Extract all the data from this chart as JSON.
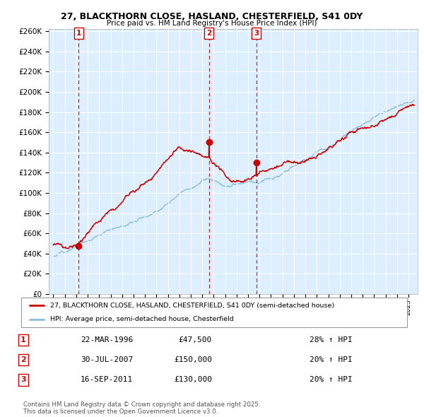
{
  "title_line1": "27, BLACKTHORN CLOSE, HASLAND, CHESTERFIELD, S41 0DY",
  "title_line2": "Price paid vs. HM Land Registry's House Price Index (HPI)",
  "ylabel_ticks": [
    "£0",
    "£20K",
    "£40K",
    "£60K",
    "£80K",
    "£100K",
    "£120K",
    "£140K",
    "£160K",
    "£180K",
    "£200K",
    "£220K",
    "£240K",
    "£260K"
  ],
  "ylim": [
    0,
    262000
  ],
  "xlim_start": 1993.6,
  "xlim_end": 2025.8,
  "background_color": "#ffffff",
  "plot_bg_color": "#ddeeff",
  "grid_color": "#ffffff",
  "sale_dates": [
    1996.22,
    2007.58,
    2011.71
  ],
  "sale_prices": [
    47500,
    150000,
    130000
  ],
  "sale_labels": [
    "1",
    "2",
    "3"
  ],
  "sale_date_strs": [
    "22-MAR-1996",
    "30-JUL-2007",
    "16-SEP-2011"
  ],
  "sale_price_strs": [
    "£47,500",
    "£150,000",
    "£130,000"
  ],
  "sale_hpi_strs": [
    "28% ↑ HPI",
    "20% ↑ HPI",
    "20% ↑ HPI"
  ],
  "legend_label_red": "27, BLACKTHORN CLOSE, HASLAND, CHESTERFIELD, S41 0DY (semi-detached house)",
  "legend_label_blue": "HPI: Average price, semi-detached house, Chesterfield",
  "footer_text": "Contains HM Land Registry data © Crown copyright and database right 2025.\nThis data is licensed under the Open Government Licence v3.0.",
  "red_color": "#cc0000",
  "blue_color": "#88bbdd",
  "dot_color": "#cc0000",
  "vline_color": "#cc0000"
}
